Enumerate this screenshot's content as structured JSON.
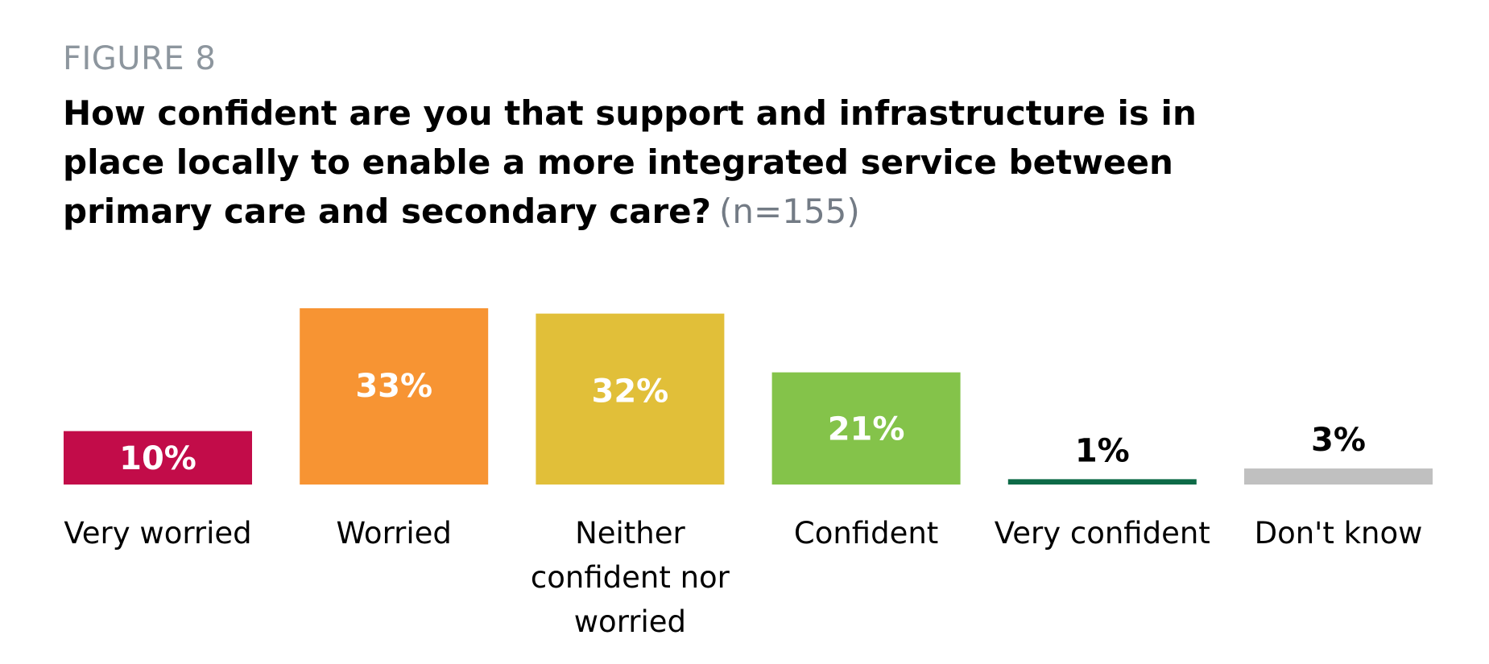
{
  "figure_label": "FIGURE 8",
  "title": "How confident are you that support and infrastructure is in place locally to enable a more integrated service between primary care and secondary care?",
  "sample_note": "(n=155)",
  "chart_data": {
    "type": "bar",
    "title": "How confident are you that support and infrastructure is in place locally to enable a more integrated service between primary care and secondary care?",
    "categories": [
      [
        "Very worried"
      ],
      [
        "Worried"
      ],
      [
        "Neither",
        "confident nor",
        "worried"
      ],
      [
        "Confident"
      ],
      [
        "Very confident"
      ],
      [
        "Don't know"
      ]
    ],
    "values": [
      10,
      33,
      32,
      21,
      1,
      3
    ],
    "value_labels": [
      "10%",
      "33%",
      "32%",
      "21%",
      "1%",
      "3%"
    ],
    "colors": [
      "#c20c49",
      "#f79433",
      "#e1bf39",
      "#84c34a",
      "#0d6a47",
      "#c0c0c0"
    ],
    "label_colors": [
      "#ffffff",
      "#ffffff",
      "#ffffff",
      "#ffffff",
      "#000000",
      "#000000"
    ],
    "unit": "%",
    "ylim": [
      0,
      33
    ],
    "grid": false,
    "legend": "none",
    "xlabel": "",
    "ylabel": ""
  }
}
